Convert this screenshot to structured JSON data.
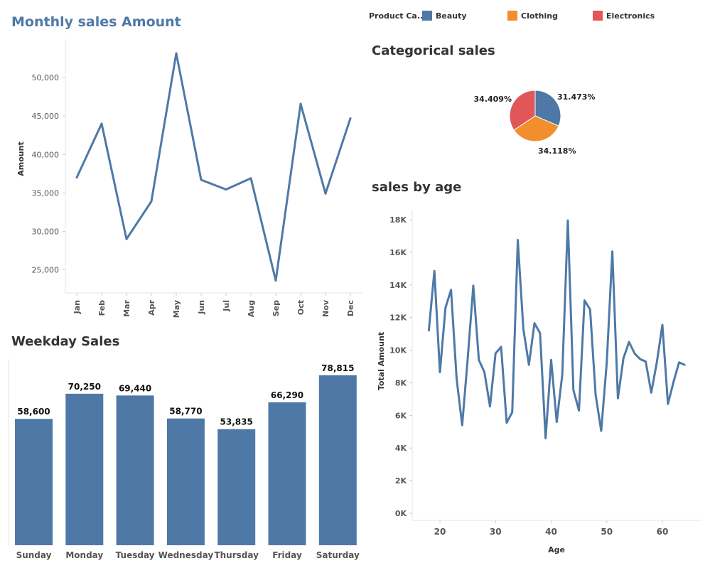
{
  "legend": {
    "title": "Product Ca..",
    "items": [
      {
        "label": "Beauty",
        "color": "#4e79a7"
      },
      {
        "label": "Clothing",
        "color": "#f28e2b"
      },
      {
        "label": "Electronics",
        "color": "#e15759"
      }
    ]
  },
  "chart_data": [
    {
      "id": "monthly",
      "type": "line",
      "title": "Monthly sales Amount",
      "ylabel": "Amount",
      "xlabel": "",
      "categories": [
        "Jan",
        "Feb",
        "Mar",
        "Apr",
        "May",
        "Jun",
        "Jul",
        "Aug",
        "Sep",
        "Oct",
        "Nov",
        "Dec"
      ],
      "values": [
        37000,
        44000,
        29000,
        33900,
        53150,
        36700,
        35450,
        36900,
        23600,
        46580,
        34920,
        44690
      ],
      "yticks": [
        25000,
        30000,
        35000,
        40000,
        45000,
        50000
      ],
      "ytick_labels": [
        "25,000",
        "30,000",
        "35,000",
        "40,000",
        "45,000",
        "50,000"
      ],
      "ylim": [
        22000,
        55000
      ],
      "color": "#4e79a7"
    },
    {
      "id": "categorical",
      "type": "pie",
      "title": "Categorical sales",
      "slices": [
        {
          "name": "Beauty",
          "value": 31.473,
          "label": "31.473%",
          "color": "#4e79a7"
        },
        {
          "name": "Clothing",
          "value": 34.118,
          "label": "34.118%",
          "color": "#f28e2b"
        },
        {
          "name": "Electronics",
          "value": 34.409,
          "label": "34.409%",
          "color": "#e15759"
        }
      ]
    },
    {
      "id": "age",
      "type": "line",
      "title": "sales by age",
      "xlabel": "Age",
      "ylabel": "Total Amount",
      "x": [
        18,
        19,
        20,
        21,
        22,
        23,
        24,
        25,
        26,
        27,
        28,
        29,
        30,
        31,
        32,
        33,
        34,
        35,
        36,
        37,
        38,
        39,
        40,
        41,
        42,
        43,
        44,
        45,
        46,
        47,
        48,
        49,
        50,
        51,
        52,
        53,
        54,
        55,
        56,
        57,
        58,
        59,
        60,
        61,
        62,
        63,
        64
      ],
      "values": [
        11200,
        14850,
        8650,
        12600,
        13700,
        8250,
        5400,
        9500,
        13950,
        9400,
        8650,
        6550,
        9800,
        10200,
        5550,
        6200,
        16750,
        11300,
        9100,
        11650,
        11050,
        4600,
        9400,
        5600,
        8500,
        17950,
        7550,
        6300,
        13050,
        12500,
        7250,
        5050,
        9250,
        16050,
        7050,
        9500,
        10500,
        9800,
        9450,
        9300,
        7400,
        9250,
        11550,
        6700,
        8050,
        9250,
        9100
      ],
      "yticks": [
        0,
        2000,
        4000,
        6000,
        8000,
        10000,
        12000,
        14000,
        16000,
        18000
      ],
      "ytick_labels": [
        "0K",
        "2K",
        "4K",
        "6K",
        "8K",
        "10K",
        "12K",
        "14K",
        "16K",
        "18K"
      ],
      "xticks": [
        20,
        30,
        40,
        50,
        60
      ],
      "xtick_labels": [
        "20",
        "30",
        "40",
        "50",
        "60"
      ],
      "ylim": [
        0,
        18500
      ],
      "xlim": [
        15,
        67
      ],
      "color": "#4e79a7"
    },
    {
      "id": "weekday",
      "type": "bar",
      "title": "Weekday Sales",
      "categories": [
        "Sunday",
        "Monday",
        "Tuesday",
        "Wednesday",
        "Thursday",
        "Friday",
        "Saturday"
      ],
      "values": [
        58600,
        70250,
        69440,
        58770,
        53835,
        66290,
        78815
      ],
      "value_labels": [
        "58,600",
        "70,250",
        "69,440",
        "58,770",
        "53,835",
        "66,290",
        "78,815"
      ],
      "ylim": [
        0,
        88000
      ],
      "color": "#4e79a7"
    }
  ]
}
